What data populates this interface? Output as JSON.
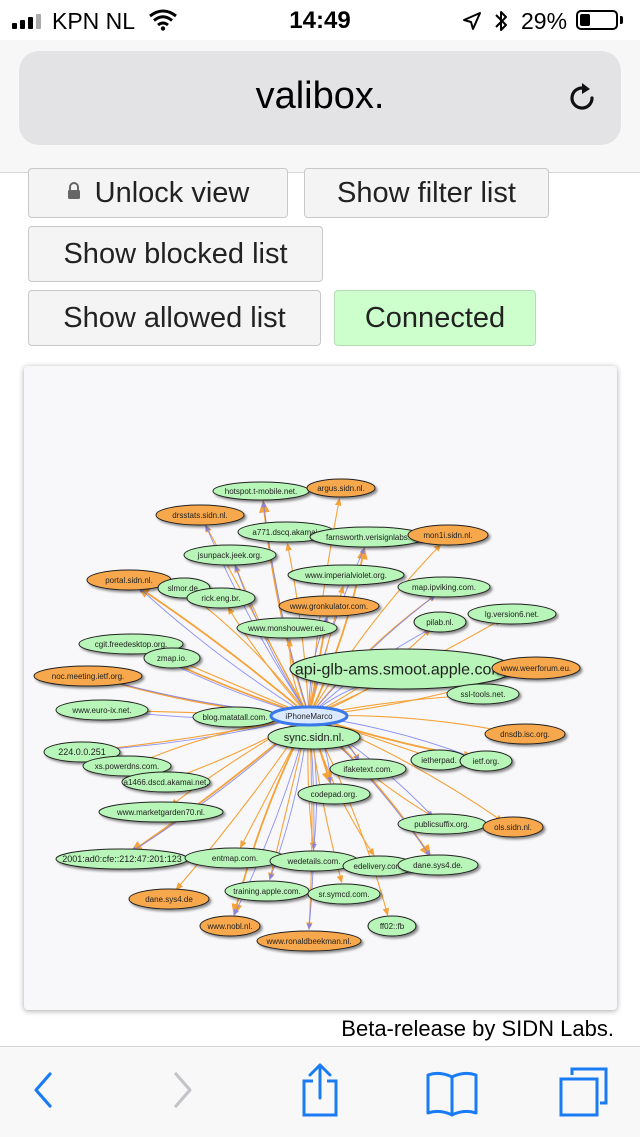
{
  "status": {
    "carrier": "KPN NL",
    "time": "14:49",
    "battery": "29%",
    "battery_level": 0.29
  },
  "browser": {
    "url": "valibox."
  },
  "controls": {
    "unlock_label": "Unlock view",
    "filter_label": "Show filter list",
    "blocked_label": "Show blocked list",
    "allowed_label": "Show allowed list",
    "connected_label": "Connected"
  },
  "colors": {
    "allowed_node": "#b8f5b8",
    "blocked_node": "#f7a84e",
    "center_node": "#dbe9ff",
    "edge_out": "#f5a238",
    "edge_in": "#7b7ff5"
  },
  "graph": {
    "center": "iPhoneMarco",
    "nodes": [
      {
        "label": "hotspot.t-mobile.net.",
        "status": "allowed"
      },
      {
        "label": "argus.sidn.nl.",
        "status": "blocked"
      },
      {
        "label": "drsstats.sidn.nl.",
        "status": "blocked"
      },
      {
        "label": "a771.dscq.akamai.",
        "status": "allowed"
      },
      {
        "label": "farnsworth.verisignlabs.",
        "status": "allowed"
      },
      {
        "label": "mon1i.sidn.nl.",
        "status": "blocked"
      },
      {
        "label": "jsunpack.jeek.org.",
        "status": "allowed"
      },
      {
        "label": "www.imperialviolet.org.",
        "status": "allowed"
      },
      {
        "label": "portal.sidn.nl.",
        "status": "blocked"
      },
      {
        "label": "slmor.de.",
        "status": "allowed"
      },
      {
        "label": "map.ipviking.com.",
        "status": "allowed"
      },
      {
        "label": "rick.eng.br.",
        "status": "allowed"
      },
      {
        "label": "www.gronkulator.com.",
        "status": "blocked"
      },
      {
        "label": "lg.version6.net.",
        "status": "allowed"
      },
      {
        "label": "pilab.nl.",
        "status": "allowed"
      },
      {
        "label": "www.monshouwer.eu.",
        "status": "allowed"
      },
      {
        "label": "cgit.freedesktop.org.",
        "status": "allowed"
      },
      {
        "label": "zmap.io.",
        "status": "allowed"
      },
      {
        "label": "api-glb-ams.smoot.apple.com.",
        "status": "allowed"
      },
      {
        "label": "www.weerforum.eu.",
        "status": "blocked"
      },
      {
        "label": "noc.meeting.ietf.org.",
        "status": "blocked"
      },
      {
        "label": "ssl-tools.net.",
        "status": "allowed"
      },
      {
        "label": "www.euro-ix.net.",
        "status": "allowed"
      },
      {
        "label": "blog.matatall.com.",
        "status": "allowed"
      },
      {
        "label": "sync.sidn.nl.",
        "status": "allowed"
      },
      {
        "label": "dnsdb.isc.org.",
        "status": "blocked"
      },
      {
        "label": "224.0.0.251",
        "status": "allowed"
      },
      {
        "label": "ietherpad.",
        "status": "allowed"
      },
      {
        "label": "ietf.org.",
        "status": "allowed"
      },
      {
        "label": "xs.powerdns.com.",
        "status": "allowed"
      },
      {
        "label": "ifaketext.com.",
        "status": "allowed"
      },
      {
        "label": "a1466.dscd.akamai.net.",
        "status": "allowed"
      },
      {
        "label": "codepad.org.",
        "status": "allowed"
      },
      {
        "label": "www.marketgarden70.nl.",
        "status": "allowed"
      },
      {
        "label": "publicsuffix.org.",
        "status": "allowed"
      },
      {
        "label": "ols.sidn.nl.",
        "status": "blocked"
      },
      {
        "label": "2001:ad0:cfe::212:47:201:123",
        "status": "allowed"
      },
      {
        "label": "entmap.com.",
        "status": "allowed"
      },
      {
        "label": "wedetails.com.",
        "status": "allowed"
      },
      {
        "label": "edelivery.com.",
        "status": "allowed"
      },
      {
        "label": "dane.sys4.de.",
        "status": "allowed"
      },
      {
        "label": "dane.sys4.de",
        "status": "blocked"
      },
      {
        "label": "training.apple.com.",
        "status": "allowed"
      },
      {
        "label": "sr.symcd.com.",
        "status": "allowed"
      },
      {
        "label": "www.nobl.nl.",
        "status": "blocked"
      },
      {
        "label": "ff02::fb",
        "status": "allowed"
      },
      {
        "label": "www.ronaldbeekman.nl.",
        "status": "blocked"
      }
    ]
  },
  "footer": {
    "credit": "Beta-release by SIDN Labs."
  },
  "toolbar": {
    "icons": [
      "back-icon",
      "forward-icon",
      "share-icon",
      "bookmarks-icon",
      "tabs-icon"
    ]
  }
}
